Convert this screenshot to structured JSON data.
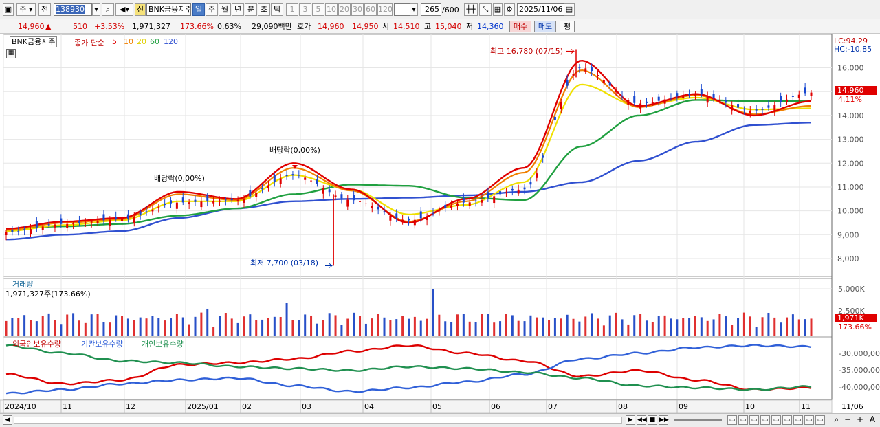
{
  "toolbar": {
    "mode_label": "주",
    "prev_label": "전",
    "code_value": "138930",
    "new_badge": "신",
    "stock_name": "BNK금융지주",
    "periods": [
      "일",
      "주",
      "월",
      "년",
      "분",
      "초",
      "틱"
    ],
    "active_period": "일",
    "minute_steps": [
      "1",
      "3",
      "5",
      "10",
      "20",
      "30",
      "60",
      "120"
    ],
    "count_value": "265",
    "count_max": "/600",
    "date_value": "2025/11/06"
  },
  "infobar": {
    "price": "14,960",
    "arrow": "▲",
    "change": "510",
    "change_pct": "+3.53%",
    "volume": "1,971,327",
    "volume_ratio": "173.66%",
    "turnover": "0.63%",
    "amount": "29,090백만",
    "quote_label": "호가",
    "ask": "14,960",
    "bid": "14,950",
    "open_label": "시",
    "open": "14,510",
    "high_label": "고",
    "high": "15,040",
    "low_label": "저",
    "low": "14,360",
    "buy_label": "매수",
    "sell_label": "매도",
    "eval_label": "평"
  },
  "legend": {
    "name": "BNK금융지주",
    "price_label": "종가 단순",
    "ma": [
      {
        "period": "5",
        "color": "#e00000"
      },
      {
        "period": "10",
        "color": "#f08000"
      },
      {
        "period": "20",
        "color": "#f0e000"
      },
      {
        "period": "60",
        "color": "#20a040"
      },
      {
        "period": "120",
        "color": "#3050d0"
      }
    ]
  },
  "annotations": {
    "high": "최고 16,780 (07/15)",
    "low": "최저 7,700 (03/18)",
    "dividend1": "배당락(0,00%)",
    "dividend2": "배당락(0,00%)",
    "lc": "LC:94.29",
    "hc": "HC:-10.85",
    "cur_price": "14,960",
    "cur_pct": "4.11%"
  },
  "volume_panel": {
    "title": "거래량",
    "value": "1,971,327주(173.66%)",
    "cur_tag": "1,971K",
    "cur_pct": "173.66%",
    "axis": [
      "5,000K",
      "2,500K"
    ]
  },
  "holdings_panel": {
    "series": [
      {
        "name": "외국인보유수량",
        "color": "#dd0000"
      },
      {
        "name": "기관보유수량",
        "color": "#3060d8"
      },
      {
        "name": "개인보유수량",
        "color": "#209050"
      }
    ],
    "axis": [
      "-30,000,00",
      "-35,000,00",
      "-40,000,00"
    ]
  },
  "x_axis": {
    "labels": [
      "2024/10",
      "11",
      "12",
      "2025/01",
      "02",
      "03",
      "04",
      "05",
      "06",
      "07",
      "08",
      "09",
      "10",
      "11"
    ],
    "last": "11/06"
  },
  "chart_data": [
    {
      "type": "line",
      "title": "BNK금융지주",
      "y_ticks": [
        16000,
        15000,
        14000,
        13000,
        12000,
        11000,
        10000,
        9000,
        8000
      ],
      "ylim": [
        7250,
        17400
      ],
      "grid": true,
      "legend_position": "top-left",
      "high": {
        "value": 16780,
        "date": "07/15"
      },
      "low": {
        "value": 7700,
        "date": "03/18"
      },
      "last_close": 14960,
      "close_path": {
        "months": [
          "2024/10",
          "11",
          "12",
          "2025/01",
          "02",
          "03",
          "04",
          "05",
          "06",
          "07",
          "08",
          "09",
          "10",
          "11"
        ],
        "approx_values": [
          9100,
          9450,
          9650,
          10350,
          10450,
          11500,
          10450,
          9600,
          10350,
          10900,
          16000,
          14500,
          14900,
          14200,
          14960
        ]
      },
      "series": [
        {
          "name": "5",
          "values": [
            9250,
            9550,
            9700,
            10800,
            10500,
            12000,
            10900,
            9500,
            10500,
            11800,
            16300,
            14400,
            14900,
            14000,
            14600
          ]
        },
        {
          "name": "10",
          "values": [
            9200,
            9500,
            9650,
            10700,
            10450,
            11800,
            10850,
            9550,
            10400,
            11600,
            15900,
            14350,
            14850,
            14050,
            14400
          ]
        },
        {
          "name": "20",
          "values": [
            9150,
            9400,
            9600,
            10400,
            10400,
            11500,
            10900,
            9850,
            10250,
            11200,
            15300,
            14400,
            14750,
            14250,
            14300
          ]
        },
        {
          "name": "60",
          "values": [
            9250,
            9350,
            9450,
            9800,
            10100,
            10700,
            11100,
            11050,
            10550,
            10450,
            12700,
            14000,
            14650,
            14600,
            14600
          ]
        },
        {
          "name": "120",
          "values": [
            8800,
            9000,
            9150,
            9700,
            10100,
            10400,
            10500,
            10550,
            10650,
            10800,
            11200,
            12100,
            12900,
            13600,
            13700
          ]
        }
      ]
    },
    {
      "type": "bar",
      "title": "거래량",
      "y_ticks": [
        "5,000K",
        "2,500K"
      ],
      "last_value": "1,971,327"
    },
    {
      "type": "line",
      "title": "보유수량",
      "y_ticks": [
        "-30,000,00",
        "-35,000,00",
        "-40,000,00"
      ],
      "series": [
        {
          "name": "외국인보유수량",
          "color": "#dd0000"
        },
        {
          "name": "기관보유수량",
          "color": "#3060d8"
        },
        {
          "name": "개인보유수량",
          "color": "#209050"
        }
      ]
    }
  ]
}
